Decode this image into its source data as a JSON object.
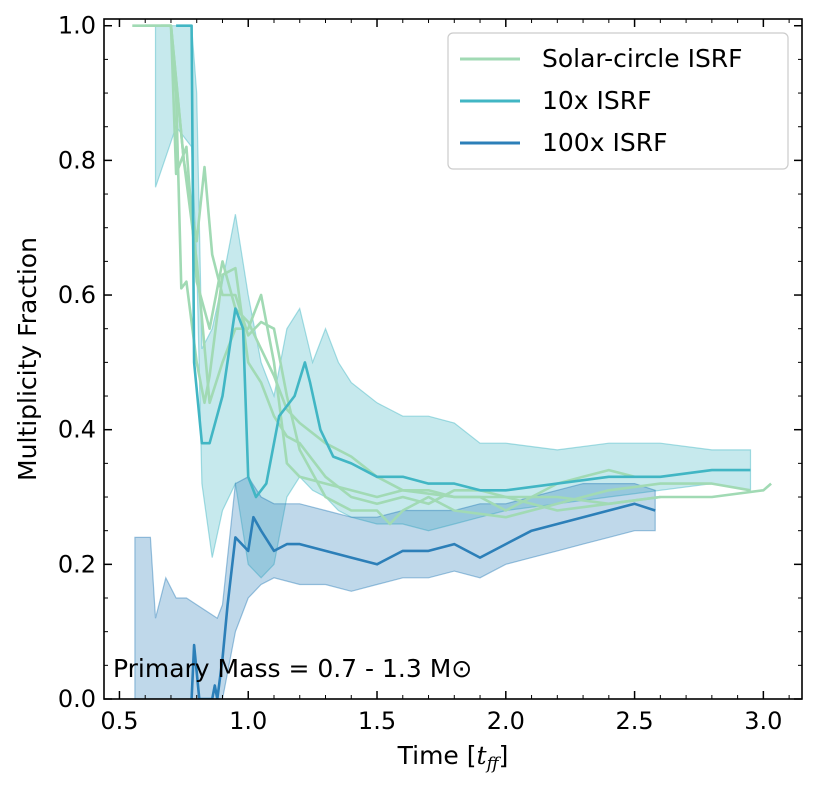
{
  "chart_data": {
    "type": "line",
    "title": "",
    "xlabel": "Time [t_ff]",
    "xlabel_main": "Time [",
    "xlabel_sym": "t",
    "xlabel_sub": "ff",
    "xlabel_close": "]",
    "ylabel": "Multiplicity Fraction",
    "xlim": [
      0.44,
      3.15
    ],
    "ylim": [
      0.0,
      1.01
    ],
    "xticks": [
      0.5,
      1.0,
      1.5,
      2.0,
      2.5,
      3.0
    ],
    "xtick_labels": [
      "0.5",
      "1.0",
      "1.5",
      "2.0",
      "2.5",
      "3.0"
    ],
    "yticks": [
      0.0,
      0.2,
      0.4,
      0.6,
      0.8,
      1.0
    ],
    "ytick_labels": [
      "0.0",
      "0.2",
      "0.4",
      "0.6",
      "0.8",
      "1.0"
    ],
    "legend_position": "top-right",
    "annotation": "Primary Mass = 0.7 - 1.3 M⊙",
    "series": [
      {
        "name": "Solar-circle ISRF",
        "color": "#a1dab4",
        "lines": [
          {
            "x": [
              0.55,
              0.7,
              0.72,
              0.76,
              0.8,
              0.85,
              0.9,
              0.95,
              1.0,
              1.05,
              1.1,
              1.15,
              1.2,
              1.3,
              1.4,
              1.5,
              1.6,
              1.8,
              2.0,
              2.2,
              2.4,
              2.6,
              2.8,
              3.0,
              3.03
            ],
            "y": [
              1.0,
              1.0,
              0.78,
              0.82,
              0.62,
              0.55,
              0.65,
              0.58,
              0.56,
              0.52,
              0.48,
              0.43,
              0.41,
              0.38,
              0.36,
              0.33,
              0.31,
              0.3,
              0.3,
              0.3,
              0.29,
              0.3,
              0.3,
              0.31,
              0.32
            ]
          },
          {
            "x": [
              0.6,
              0.7,
              0.72,
              0.74,
              0.76,
              0.8,
              0.83,
              0.85,
              0.9,
              0.95,
              1.0,
              1.05,
              1.1,
              1.15,
              1.2,
              1.3,
              1.4,
              1.5,
              1.6,
              1.7,
              1.8,
              1.9,
              2.0,
              2.2,
              2.4,
              2.6
            ],
            "y": [
              1.0,
              1.0,
              0.9,
              0.61,
              0.62,
              0.5,
              0.44,
              0.48,
              0.63,
              0.64,
              0.5,
              0.47,
              0.42,
              0.39,
              0.38,
              0.33,
              0.3,
              0.29,
              0.3,
              0.29,
              0.31,
              0.31,
              0.3,
              0.28,
              0.29,
              0.3
            ]
          },
          {
            "x": [
              0.66,
              0.7,
              0.75,
              0.8,
              0.83,
              0.86,
              0.9,
              0.95,
              1.0,
              1.05,
              1.1,
              1.15,
              1.2,
              1.3,
              1.4,
              1.5,
              1.55,
              1.6,
              1.7,
              1.8,
              2.0,
              2.2,
              2.4,
              2.6,
              2.8,
              2.95
            ],
            "y": [
              1.0,
              1.0,
              0.8,
              0.68,
              0.79,
              0.66,
              0.6,
              0.6,
              0.54,
              0.56,
              0.55,
              0.45,
              0.37,
              0.3,
              0.28,
              0.28,
              0.26,
              0.28,
              0.3,
              0.28,
              0.27,
              0.29,
              0.31,
              0.32,
              0.32,
              0.31
            ]
          },
          {
            "x": [
              0.7,
              0.75,
              0.8,
              0.85,
              0.9,
              0.95,
              1.0,
              1.05,
              1.1,
              1.15,
              1.2,
              1.3,
              1.4,
              1.5,
              1.6,
              1.7,
              1.8,
              1.9,
              2.0,
              2.1,
              2.2,
              2.3,
              2.4,
              2.5
            ],
            "y": [
              1.0,
              0.8,
              0.65,
              0.44,
              0.5,
              0.55,
              0.55,
              0.6,
              0.5,
              0.35,
              0.33,
              0.32,
              0.31,
              0.3,
              0.31,
              0.31,
              0.3,
              0.3,
              0.28,
              0.3,
              0.32,
              0.33,
              0.34,
              0.33
            ]
          }
        ]
      },
      {
        "name": "10x ISRF",
        "color": "#41b6c4",
        "band": {
          "x": [
            0.64,
            0.72,
            0.78,
            0.8,
            0.82,
            0.86,
            0.9,
            0.95,
            1.0,
            1.05,
            1.1,
            1.15,
            1.2,
            1.25,
            1.3,
            1.35,
            1.4,
            1.5,
            1.6,
            1.7,
            1.8,
            1.9,
            2.0,
            2.2,
            2.4,
            2.6,
            2.8,
            2.95
          ],
          "lower": [
            0.76,
            0.85,
            0.82,
            0.65,
            0.32,
            0.21,
            0.28,
            0.32,
            0.2,
            0.18,
            0.2,
            0.3,
            0.33,
            0.31,
            0.3,
            0.28,
            0.27,
            0.26,
            0.26,
            0.25,
            0.26,
            0.27,
            0.28,
            0.29,
            0.3,
            0.31,
            0.32,
            0.31
          ],
          "upper": [
            1.0,
            1.0,
            1.0,
            0.9,
            0.52,
            0.55,
            0.62,
            0.72,
            0.6,
            0.5,
            0.45,
            0.55,
            0.58,
            0.5,
            0.55,
            0.5,
            0.47,
            0.44,
            0.42,
            0.42,
            0.41,
            0.38,
            0.38,
            0.37,
            0.38,
            0.38,
            0.37,
            0.37
          ]
        },
        "lines": [
          {
            "x": [
              0.72,
              0.78,
              0.79,
              0.82,
              0.85,
              0.9,
              0.95,
              0.98,
              1.0,
              1.03,
              1.07,
              1.12,
              1.18,
              1.22,
              1.24,
              1.28,
              1.33,
              1.4,
              1.5,
              1.6,
              1.7,
              1.8,
              1.9,
              2.0,
              2.2,
              2.4,
              2.6,
              2.8,
              2.95
            ],
            "y": [
              1.0,
              1.0,
              0.5,
              0.38,
              0.38,
              0.45,
              0.58,
              0.55,
              0.33,
              0.3,
              0.32,
              0.42,
              0.45,
              0.5,
              0.47,
              0.4,
              0.36,
              0.35,
              0.33,
              0.33,
              0.32,
              0.32,
              0.31,
              0.31,
              0.32,
              0.33,
              0.33,
              0.34,
              0.34
            ]
          }
        ]
      },
      {
        "name": "100x ISRF",
        "color": "#2c7fb8",
        "band": {
          "x": [
            0.56,
            0.62,
            0.64,
            0.68,
            0.72,
            0.76,
            0.8,
            0.84,
            0.88,
            0.9,
            0.95,
            1.0,
            1.05,
            1.1,
            1.2,
            1.3,
            1.4,
            1.5,
            1.6,
            1.7,
            1.8,
            1.9,
            2.0,
            2.1,
            2.2,
            2.3,
            2.4,
            2.5,
            2.58
          ],
          "lower": [
            0.0,
            0.0,
            0.0,
            0.0,
            0.0,
            0.0,
            0.0,
            0.0,
            0.0,
            0.0,
            0.1,
            0.15,
            0.17,
            0.18,
            0.17,
            0.17,
            0.16,
            0.17,
            0.18,
            0.18,
            0.19,
            0.18,
            0.2,
            0.21,
            0.22,
            0.23,
            0.24,
            0.25,
            0.25
          ],
          "upper": [
            0.24,
            0.24,
            0.12,
            0.18,
            0.15,
            0.15,
            0.14,
            0.13,
            0.12,
            0.14,
            0.32,
            0.33,
            0.3,
            0.29,
            0.29,
            0.28,
            0.27,
            0.27,
            0.28,
            0.28,
            0.28,
            0.29,
            0.29,
            0.3,
            0.31,
            0.32,
            0.32,
            0.32,
            0.31
          ]
        },
        "lines": [
          {
            "x": [
              0.78,
              0.79,
              0.81,
              0.86,
              0.87,
              0.88,
              0.9,
              0.92,
              0.95,
              1.0,
              1.02,
              1.05,
              1.1,
              1.15,
              1.2,
              1.3,
              1.4,
              1.5,
              1.6,
              1.7,
              1.8,
              1.9,
              2.0,
              2.1,
              2.2,
              2.3,
              2.4,
              2.5,
              2.58
            ],
            "y": [
              0.0,
              0.08,
              0.0,
              0.0,
              0.02,
              0.0,
              0.06,
              0.14,
              0.24,
              0.22,
              0.27,
              0.25,
              0.22,
              0.23,
              0.23,
              0.22,
              0.21,
              0.2,
              0.22,
              0.22,
              0.23,
              0.21,
              0.23,
              0.25,
              0.26,
              0.27,
              0.28,
              0.29,
              0.28
            ]
          }
        ]
      }
    ]
  }
}
